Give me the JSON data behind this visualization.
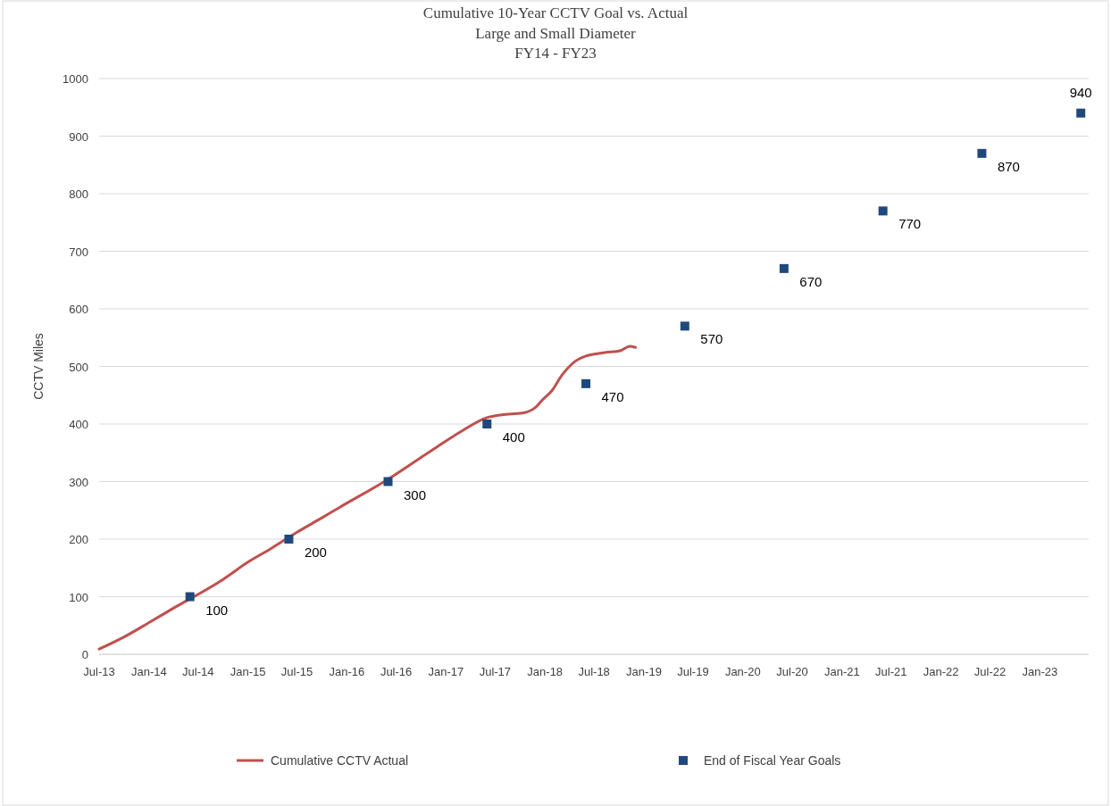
{
  "chart_data": {
    "type": "line",
    "title": "Cumulative 10-Year CCTV Goal vs. Actual",
    "subtitle": "Large and Small Diameter\nFY14 - FY23",
    "ylabel": "CCTV Miles",
    "xlim": [
      "2013-07-01",
      "2023-06-30"
    ],
    "xticks": [
      {
        "value": "2013-07-01",
        "label": "Jul-13"
      },
      {
        "value": "2014-01-01",
        "label": "Jan-14"
      },
      {
        "value": "2014-07-01",
        "label": "Jul-14"
      },
      {
        "value": "2015-01-01",
        "label": "Jan-15"
      },
      {
        "value": "2015-07-01",
        "label": "Jul-15"
      },
      {
        "value": "2016-01-01",
        "label": "Jan-16"
      },
      {
        "value": "2016-07-01",
        "label": "Jul-16"
      },
      {
        "value": "2017-01-01",
        "label": "Jan-17"
      },
      {
        "value": "2017-07-01",
        "label": "Jul-17"
      },
      {
        "value": "2018-01-01",
        "label": "Jan-18"
      },
      {
        "value": "2018-07-01",
        "label": "Jul-18"
      },
      {
        "value": "2019-01-01",
        "label": "Jan-19"
      },
      {
        "value": "2019-07-01",
        "label": "Jul-19"
      },
      {
        "value": "2020-01-01",
        "label": "Jan-20"
      },
      {
        "value": "2020-07-01",
        "label": "Jul-20"
      },
      {
        "value": "2021-01-01",
        "label": "Jan-21"
      },
      {
        "value": "2021-07-01",
        "label": "Jul-21"
      },
      {
        "value": "2022-01-01",
        "label": "Jan-22"
      },
      {
        "value": "2022-07-01",
        "label": "Jul-22"
      },
      {
        "value": "2023-01-01",
        "label": "Jan-23"
      }
    ],
    "ylim": [
      0,
      1000
    ],
    "yticks": [
      0,
      100,
      200,
      300,
      400,
      500,
      600,
      700,
      800,
      900,
      1000
    ],
    "grid": "y",
    "legend": "bottom",
    "series": [
      {
        "name": "Cumulative CCTV Actual",
        "color": "#c0504d",
        "x": [
          "2013-07-01",
          "2013-10-01",
          "2014-01-01",
          "2014-04-01",
          "2014-10-01",
          "2015-01-01",
          "2015-04-01",
          "2015-07-01",
          "2015-10-01",
          "2015-12-01",
          "2016-06-01",
          "2016-12-01",
          "2017-03-01",
          "2017-06-01",
          "2017-07-25",
          "2017-10-10",
          "2017-11-25",
          "2017-12-25",
          "2018-01-25",
          "2018-03-05",
          "2018-04-20",
          "2018-06-01",
          "2018-08-10",
          "2018-10-05",
          "2018-11-10",
          "2018-12-01"
        ],
        "values": [
          9,
          30,
          55,
          80,
          130,
          160,
          185,
          212,
          237,
          254,
          304,
          361,
          388,
          411,
          416,
          419,
          428,
          443,
          457,
          485,
          508,
          518,
          524,
          527,
          535,
          533
        ]
      },
      {
        "name": "End of Fiscal Year Goals",
        "type": "scatter",
        "marker": "square",
        "color": "#1f497d",
        "data_labels": true,
        "x": [
          "2014-06-01",
          "2015-06-01",
          "2016-06-01",
          "2017-06-01",
          "2018-06-01",
          "2019-06-01",
          "2020-06-01",
          "2021-06-01",
          "2022-06-01",
          "2023-06-01"
        ],
        "values": [
          100,
          200,
          300,
          400,
          470,
          570,
          670,
          770,
          870,
          940
        ]
      }
    ]
  }
}
